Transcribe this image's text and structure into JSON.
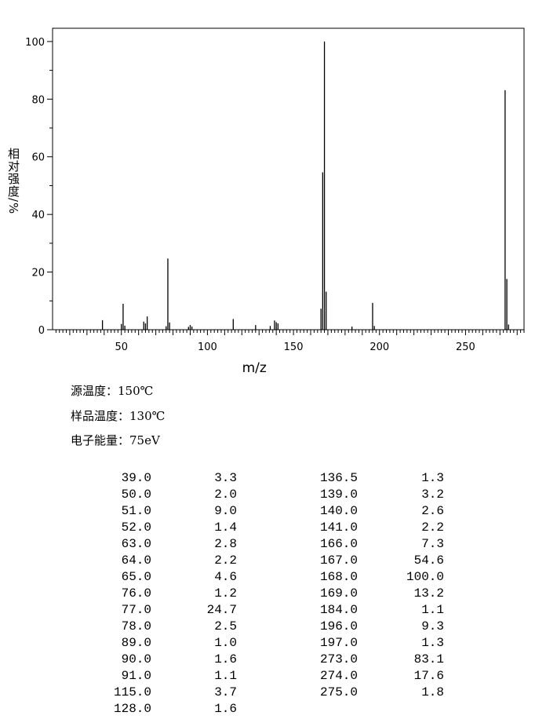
{
  "chart_data": {
    "type": "bar",
    "xlabel": "m/z",
    "ylabel": "相对强度/%",
    "xlim": [
      10,
      284
    ],
    "ylim": [
      0,
      104.6
    ],
    "xticks": [
      50,
      100,
      150,
      200,
      250
    ],
    "yticks": [
      0,
      20,
      40,
      60,
      80,
      100
    ],
    "grid": false,
    "bar_color": "#000000",
    "peaks": [
      [
        39.0,
        3.3
      ],
      [
        50.0,
        2.0
      ],
      [
        51.0,
        9.0
      ],
      [
        52.0,
        1.4
      ],
      [
        63.0,
        2.8
      ],
      [
        64.0,
        2.2
      ],
      [
        65.0,
        4.6
      ],
      [
        76.0,
        1.2
      ],
      [
        77.0,
        24.7
      ],
      [
        78.0,
        2.5
      ],
      [
        89.0,
        1.0
      ],
      [
        90.0,
        1.6
      ],
      [
        91.0,
        1.1
      ],
      [
        115.0,
        3.7
      ],
      [
        128.0,
        1.6
      ],
      [
        136.5,
        1.3
      ],
      [
        139.0,
        3.2
      ],
      [
        140.0,
        2.6
      ],
      [
        141.0,
        2.2
      ],
      [
        166.0,
        7.3
      ],
      [
        167.0,
        54.6
      ],
      [
        168.0,
        100.0
      ],
      [
        169.0,
        13.2
      ],
      [
        184.0,
        1.1
      ],
      [
        196.0,
        9.3
      ],
      [
        197.0,
        1.3
      ],
      [
        273.0,
        83.1
      ],
      [
        274.0,
        17.6
      ],
      [
        275.0,
        1.8
      ]
    ]
  },
  "conditions": {
    "source_temp": "源温度：150℃",
    "sample_temp": "样品温度：130℃",
    "electron_energy": "电子能量：75eV"
  },
  "table": {
    "left": [
      [
        "39.0",
        "3.3"
      ],
      [
        "50.0",
        "2.0"
      ],
      [
        "51.0",
        "9.0"
      ],
      [
        "52.0",
        "1.4"
      ],
      [
        "63.0",
        "2.8"
      ],
      [
        "64.0",
        "2.2"
      ],
      [
        "65.0",
        "4.6"
      ],
      [
        "76.0",
        "1.2"
      ],
      [
        "77.0",
        "24.7"
      ],
      [
        "78.0",
        "2.5"
      ],
      [
        "89.0",
        "1.0"
      ],
      [
        "90.0",
        "1.6"
      ],
      [
        "91.0",
        "1.1"
      ],
      [
        "115.0",
        "3.7"
      ],
      [
        "128.0",
        "1.6"
      ]
    ],
    "right": [
      [
        "136.5",
        "1.3"
      ],
      [
        "139.0",
        "3.2"
      ],
      [
        "140.0",
        "2.6"
      ],
      [
        "141.0",
        "2.2"
      ],
      [
        "166.0",
        "7.3"
      ],
      [
        "167.0",
        "54.6"
      ],
      [
        "168.0",
        "100.0"
      ],
      [
        "169.0",
        "13.2"
      ],
      [
        "184.0",
        "1.1"
      ],
      [
        "196.0",
        "9.3"
      ],
      [
        "197.0",
        "1.3"
      ],
      [
        "273.0",
        "83.1"
      ],
      [
        "274.0",
        "17.6"
      ],
      [
        "275.0",
        "1.8"
      ]
    ]
  }
}
